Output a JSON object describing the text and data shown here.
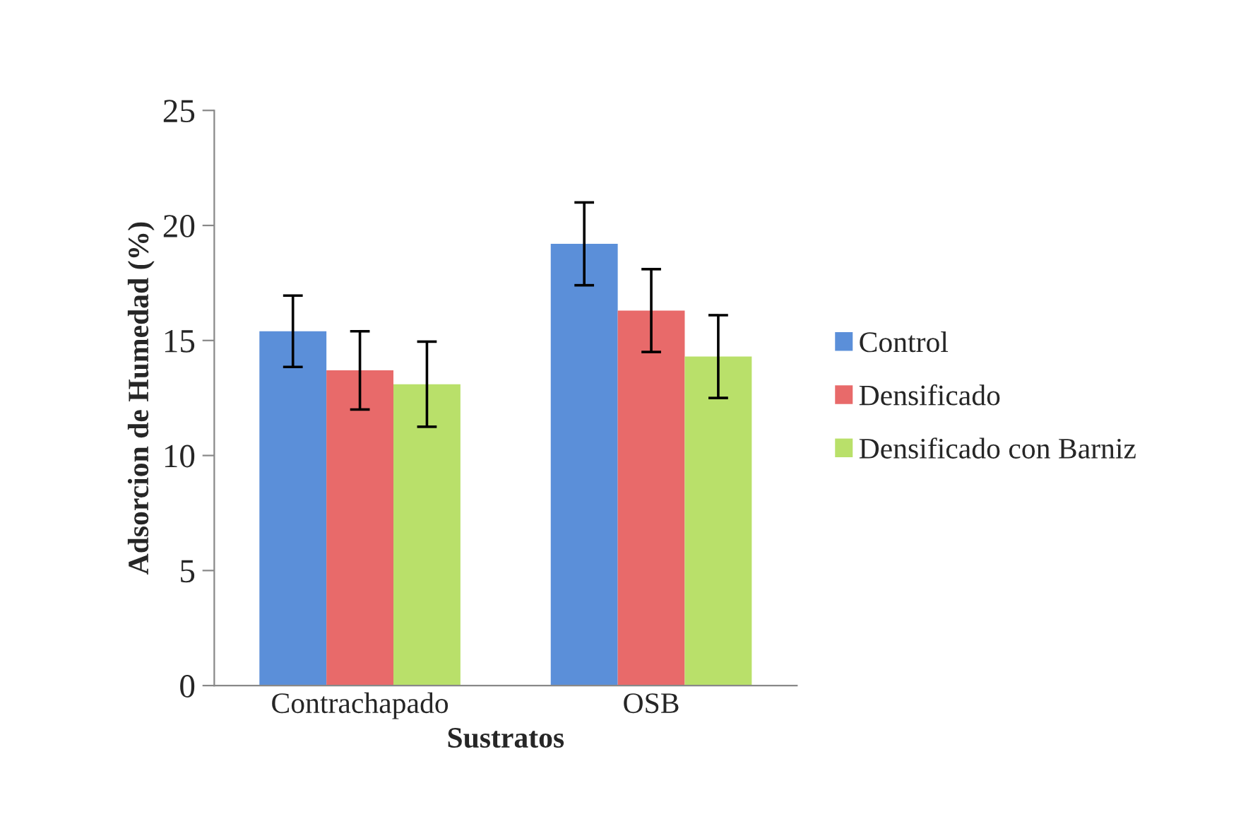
{
  "chart_data": {
    "type": "bar",
    "xlabel": "Sustratos",
    "ylabel": "Adsorcion de Humedad (%)",
    "categories": [
      "Contrachapado",
      "OSB"
    ],
    "series": [
      {
        "name": "Control",
        "color": "#5b8fd9",
        "values": [
          15.4,
          19.2
        ],
        "errors": [
          1.55,
          1.8
        ]
      },
      {
        "name": "Densificado",
        "color": "#e86a6a",
        "values": [
          13.7,
          16.3
        ],
        "errors": [
          1.7,
          1.8
        ]
      },
      {
        "name": "Densificado con Barniz",
        "color": "#b9e06a",
        "values": [
          13.1,
          14.3
        ],
        "errors": [
          1.85,
          1.8
        ]
      }
    ],
    "ylim": [
      0,
      25
    ],
    "yticks": [
      0,
      5,
      10,
      15,
      20,
      25
    ],
    "grid": false,
    "legend": "right"
  }
}
